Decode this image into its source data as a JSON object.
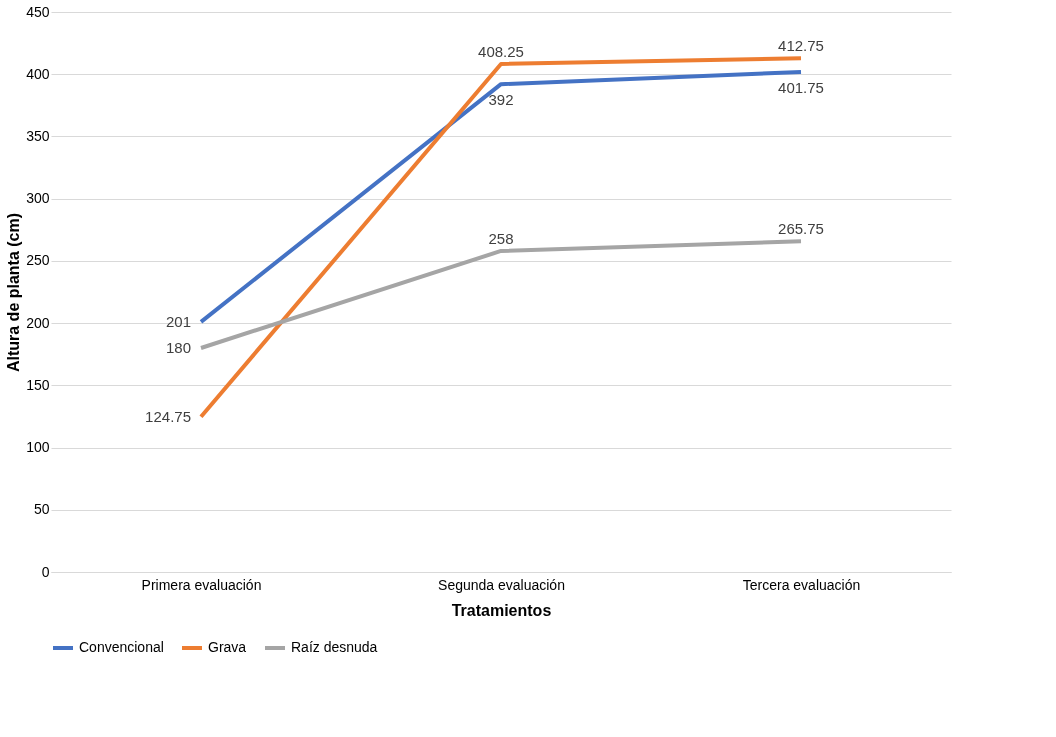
{
  "chart_data": {
    "type": "line",
    "xlabel": "Tratamientos",
    "ylabel": "Altura de planta (cm)",
    "categories": [
      "Primera evaluación",
      "Segunda evaluación",
      "Tercera evaluación"
    ],
    "series": [
      {
        "name": "Convencional",
        "color": "#4472c4",
        "values": [
          201,
          392,
          401.75
        ]
      },
      {
        "name": "Grava",
        "color": "#ed7d31",
        "values": [
          124.75,
          408.25,
          412.75
        ]
      },
      {
        "name": "Raíz desnuda",
        "color": "#a5a5a5",
        "values": [
          180,
          258,
          265.75
        ]
      }
    ],
    "ylim": [
      0,
      450
    ],
    "yticks": [
      0,
      50,
      100,
      150,
      200,
      250,
      300,
      350,
      400,
      450
    ],
    "grid": "y",
    "legend": "bottom",
    "data_labels": true,
    "marker": "none",
    "line_style": "solid"
  }
}
